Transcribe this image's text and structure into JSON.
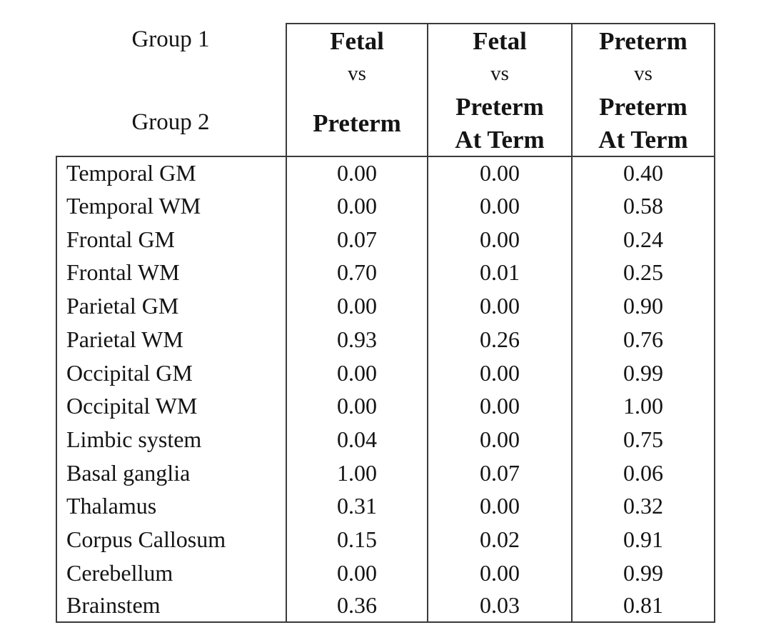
{
  "colors": {
    "line": "#3a3a3a",
    "text": "#141414",
    "background": "#ffffff"
  },
  "table": {
    "corner": {
      "group1": "Group 1",
      "group2": "Group 2"
    },
    "columns": [
      {
        "top": "Fetal",
        "vs": "vs",
        "bottom": "Preterm"
      },
      {
        "top": "Fetal",
        "vs": "vs",
        "bottom": "Preterm",
        "bottom2": "At Term"
      },
      {
        "top": "Preterm",
        "vs": "vs",
        "bottom": "Preterm",
        "bottom2": "At Term"
      }
    ],
    "rows": [
      {
        "label": "Temporal GM",
        "values": [
          "0.00",
          "0.00",
          "0.40"
        ]
      },
      {
        "label": "Temporal WM",
        "values": [
          "0.00",
          "0.00",
          "0.58"
        ]
      },
      {
        "label": "Frontal GM",
        "values": [
          "0.07",
          "0.00",
          "0.24"
        ]
      },
      {
        "label": "Frontal WM",
        "values": [
          "0.70",
          "0.01",
          "0.25"
        ]
      },
      {
        "label": "Parietal GM",
        "values": [
          "0.00",
          "0.00",
          "0.90"
        ]
      },
      {
        "label": "Parietal WM",
        "values": [
          "0.93",
          "0.26",
          "0.76"
        ]
      },
      {
        "label": "Occipital GM",
        "values": [
          "0.00",
          "0.00",
          "0.99"
        ]
      },
      {
        "label": "Occipital WM",
        "values": [
          "0.00",
          "0.00",
          "1.00"
        ]
      },
      {
        "label": "Limbic system",
        "values": [
          "0.04",
          "0.00",
          "0.75"
        ]
      },
      {
        "label": "Basal ganglia",
        "values": [
          "1.00",
          "0.07",
          "0.06"
        ]
      },
      {
        "label": "Thalamus",
        "values": [
          "0.31",
          "0.00",
          "0.32"
        ]
      },
      {
        "label": "Corpus Callosum",
        "values": [
          "0.15",
          "0.02",
          "0.91"
        ]
      },
      {
        "label": "Cerebellum",
        "values": [
          "0.00",
          "0.00",
          "0.99"
        ]
      },
      {
        "label": "Brainstem",
        "values": [
          "0.36",
          "0.03",
          "0.81"
        ]
      }
    ]
  }
}
